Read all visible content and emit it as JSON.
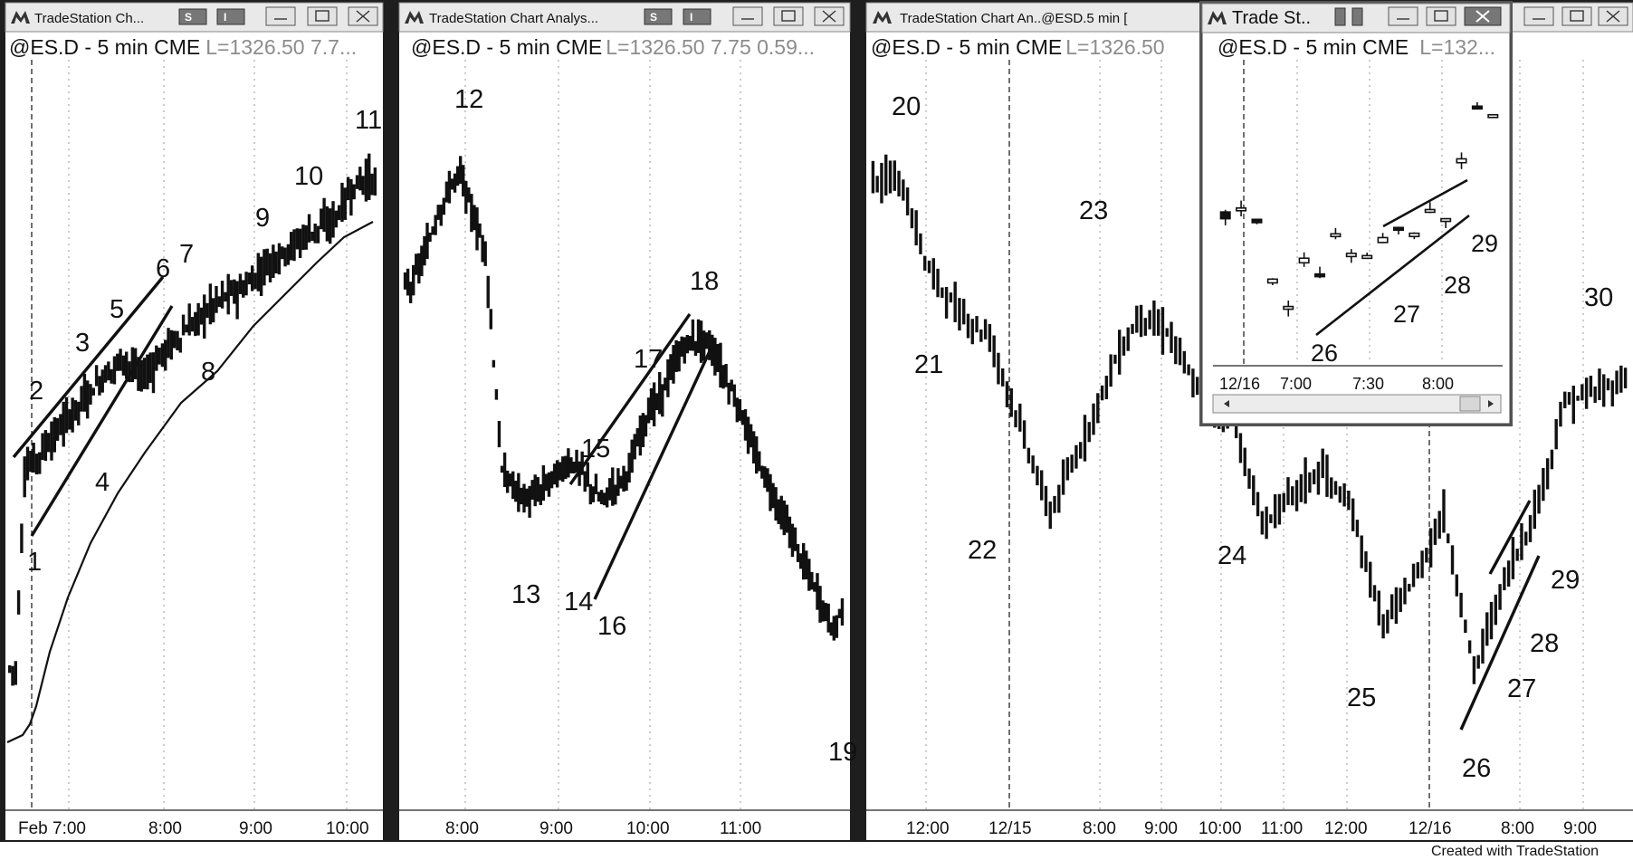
{
  "app": {
    "footer": "Created with TradeStation"
  },
  "windows": [
    {
      "title": "TradeStation Ch...",
      "quote_symbol": "@ES.D - 5 min CME",
      "quote_values": "L=1326.50 7.7...",
      "buttons": [
        "S",
        "I"
      ],
      "x_ticks": [
        "Feb 7:00",
        "8:00",
        "9:00",
        "10:00"
      ],
      "labels": [
        "1",
        "2",
        "3",
        "4",
        "5",
        "6",
        "7",
        "8",
        "9",
        "10",
        "11"
      ]
    },
    {
      "title": "TradeStation Chart Analys...",
      "quote_symbol": "@ES.D - 5 min CME",
      "quote_values": "L=1326.50 7.75 0.59...",
      "buttons": [
        "S",
        "I"
      ],
      "x_ticks": [
        "8:00",
        "9:00",
        "10:00",
        "11:00"
      ],
      "labels": [
        "12",
        "13",
        "14",
        "15",
        "16",
        "17",
        "18",
        "19"
      ]
    },
    {
      "title": "TradeStation Chart An..@ESD.5 min [",
      "quote_symbol": "@ES.D - 5 min CME",
      "quote_values": "L=1326.50",
      "x_ticks": [
        "12:00",
        "12/15",
        "8:00",
        "9:00",
        "10:00",
        "11:00",
        "12:00",
        "12/16",
        "8:00",
        "9:00"
      ],
      "labels": [
        "20",
        "21",
        "22",
        "23",
        "24",
        "25",
        "26",
        "27",
        "28",
        "29",
        "30"
      ]
    },
    {
      "title": "Trade St..",
      "quote_symbol": "@ES.D - 5 min CME",
      "quote_values": "L=132...",
      "x_ticks": [
        "12/16",
        "7:00",
        "7:30",
        "8:00"
      ],
      "labels": [
        "26",
        "27",
        "28",
        "29"
      ]
    }
  ],
  "chart_data": [
    {
      "type": "bar",
      "title": "@ES.D - 5 min CME",
      "x": [
        "6:55",
        "7:00",
        "7:05",
        "7:10",
        "7:15",
        "7:20",
        "7:25",
        "7:30",
        "7:35",
        "7:40",
        "7:45",
        "7:50",
        "7:55",
        "8:00",
        "8:05",
        "8:10",
        "8:15",
        "8:20",
        "8:25",
        "8:30",
        "8:35",
        "8:40",
        "8:45",
        "8:50",
        "8:55",
        "9:00",
        "9:05",
        "9:10",
        "9:15",
        "9:20",
        "9:25",
        "9:30",
        "9:35",
        "9:40",
        "9:45",
        "9:50",
        "9:55",
        "10:00",
        "10:05",
        "10:10",
        "10:15"
      ],
      "close": [
        1290.0,
        1304.0,
        1304.8,
        1305.6,
        1306.4,
        1307.2,
        1308.0,
        1308.8,
        1309.5,
        1310.3,
        1311.0,
        1311.6,
        1312.2,
        1311.5,
        1310.8,
        1311.4,
        1312.2,
        1313.0,
        1313.6,
        1314.2,
        1314.8,
        1315.4,
        1316.0,
        1316.5,
        1316.8,
        1317.0,
        1317.5,
        1318.2,
        1318.9,
        1319.4,
        1319.8,
        1320.3,
        1320.8,
        1321.3,
        1321.6,
        1321.8,
        1322.6,
        1323.8,
        1324.6,
        1325.0,
        1324.8
      ],
      "labels": [
        {
          "text": "1",
          "x": "7:00"
        },
        {
          "text": "2",
          "x": "7:00"
        },
        {
          "text": "3",
          "x": "7:25"
        },
        {
          "text": "4",
          "x": "7:40"
        },
        {
          "text": "5",
          "x": "7:50"
        },
        {
          "text": "6",
          "x": "8:00"
        },
        {
          "text": "7",
          "x": "8:05"
        },
        {
          "text": "8",
          "x": "8:20"
        },
        {
          "text": "9",
          "x": "9:00"
        },
        {
          "text": "10",
          "x": "9:20"
        },
        {
          "text": "11",
          "x": "10:05"
        }
      ]
    },
    {
      "type": "bar",
      "title": "@ES.D - 5 min CME",
      "x": [
        "7:30",
        "7:35",
        "7:40",
        "7:45",
        "7:50",
        "7:55",
        "8:00",
        "8:05",
        "8:10",
        "8:15",
        "8:20",
        "8:25",
        "8:30",
        "8:35",
        "8:40",
        "8:45",
        "8:50",
        "8:55",
        "9:00",
        "9:05",
        "9:10",
        "9:15",
        "9:20",
        "9:25",
        "9:30",
        "9:35",
        "9:40",
        "9:45",
        "9:50",
        "9:55",
        "10:00",
        "10:05",
        "10:10",
        "10:15",
        "10:20",
        "10:25",
        "10:30",
        "10:35",
        "10:40",
        "10:45",
        "10:50",
        "10:55",
        "11:00",
        "11:05",
        "11:10",
        "11:15",
        "11:20",
        "11:25",
        "11:30",
        "11:35",
        "11:40",
        "11:45",
        "11:50"
      ],
      "close": [
        1322.0,
        1323.0,
        1324.0,
        1325.5,
        1326.5,
        1327.5,
        1328.0,
        1326.5,
        1325.0,
        1324.0,
        1318.0,
        1312.0,
        1311.5,
        1311.0,
        1310.5,
        1310.8,
        1311.2,
        1311.8,
        1312.0,
        1312.5,
        1312.4,
        1311.8,
        1311.0,
        1310.5,
        1311.0,
        1311.5,
        1312.0,
        1313.0,
        1314.5,
        1315.5,
        1316.0,
        1317.0,
        1318.0,
        1318.8,
        1319.0,
        1319.2,
        1318.8,
        1318.0,
        1317.0,
        1316.0,
        1315.0,
        1313.5,
        1312.5,
        1311.5,
        1310.5,
        1309.5,
        1308.5,
        1307.5,
        1306.5,
        1305.5,
        1304.5,
        1303.5,
        1305.0
      ],
      "labels": [
        {
          "text": "12",
          "x": "7:55"
        },
        {
          "text": "13",
          "x": "8:30"
        },
        {
          "text": "14",
          "x": "9:00"
        },
        {
          "text": "15",
          "x": "9:10"
        },
        {
          "text": "16",
          "x": "9:20"
        },
        {
          "text": "17",
          "x": "9:50"
        },
        {
          "text": "18",
          "x": "10:15"
        },
        {
          "text": "19",
          "x": "11:45"
        }
      ]
    },
    {
      "type": "bar",
      "title": "@ES.D - 5 min CME",
      "x": [
        "12/14 10:30",
        "11:00",
        "11:30",
        "12:00",
        "12:30",
        "13:00",
        "12/15 7:00",
        "7:30",
        "8:00",
        "8:30",
        "9:00",
        "9:30",
        "10:00",
        "10:30",
        "11:00",
        "11:30",
        "12:00",
        "12:30",
        "13:00",
        "12/16 7:00",
        "7:30",
        "8:00",
        "8:30",
        "9:00",
        "9:30"
      ],
      "close": [
        1326.0,
        1318.0,
        1314.0,
        1312.0,
        1304.0,
        1296.0,
        1302.0,
        1309.0,
        1314.0,
        1312.0,
        1306.0,
        1305.0,
        1295.0,
        1298.0,
        1300.0,
        1296.0,
        1286.0,
        1290.0,
        1296.0,
        1282.0,
        1290.0,
        1296.0,
        1306.0,
        1307.0,
        1308.0
      ],
      "labels": [
        {
          "text": "20",
          "x": "12/14 10:30"
        },
        {
          "text": "21",
          "x": "11:00"
        },
        {
          "text": "22",
          "x": "12:30"
        },
        {
          "text": "23",
          "x": "12/15 8:00"
        },
        {
          "text": "24",
          "x": "10:00"
        },
        {
          "text": "25",
          "x": "12:00"
        },
        {
          "text": "26",
          "x": "12/16 7:00"
        },
        {
          "text": "27",
          "x": "7:30"
        },
        {
          "text": "28",
          "x": "7:45"
        },
        {
          "text": "29",
          "x": "8:00"
        },
        {
          "text": "30",
          "x": "9:00"
        }
      ]
    },
    {
      "type": "bar",
      "title": "@ES.D - 5 min CME",
      "x": [
        "12/16 6:50",
        "6:55",
        "7:00",
        "7:05",
        "7:10",
        "7:15",
        "7:20",
        "7:25",
        "7:30",
        "7:35",
        "7:40",
        "7:45",
        "7:50",
        "7:55",
        "8:00",
        "8:05",
        "8:10",
        "8:15"
      ],
      "close": [
        1296.0,
        1297.0,
        1295.0,
        1286.0,
        1282.0,
        1289.0,
        1287.0,
        1293.0,
        1290.0,
        1290.0,
        1292.0,
        1294.0,
        1293.0,
        1297.0,
        1295.0,
        1304.0,
        1312.0,
        1311.0
      ],
      "labels": [
        {
          "text": "26",
          "x": "7:05"
        },
        {
          "text": "27",
          "x": "7:30"
        },
        {
          "text": "28",
          "x": "7:45"
        },
        {
          "text": "29",
          "x": "8:10"
        }
      ]
    }
  ]
}
